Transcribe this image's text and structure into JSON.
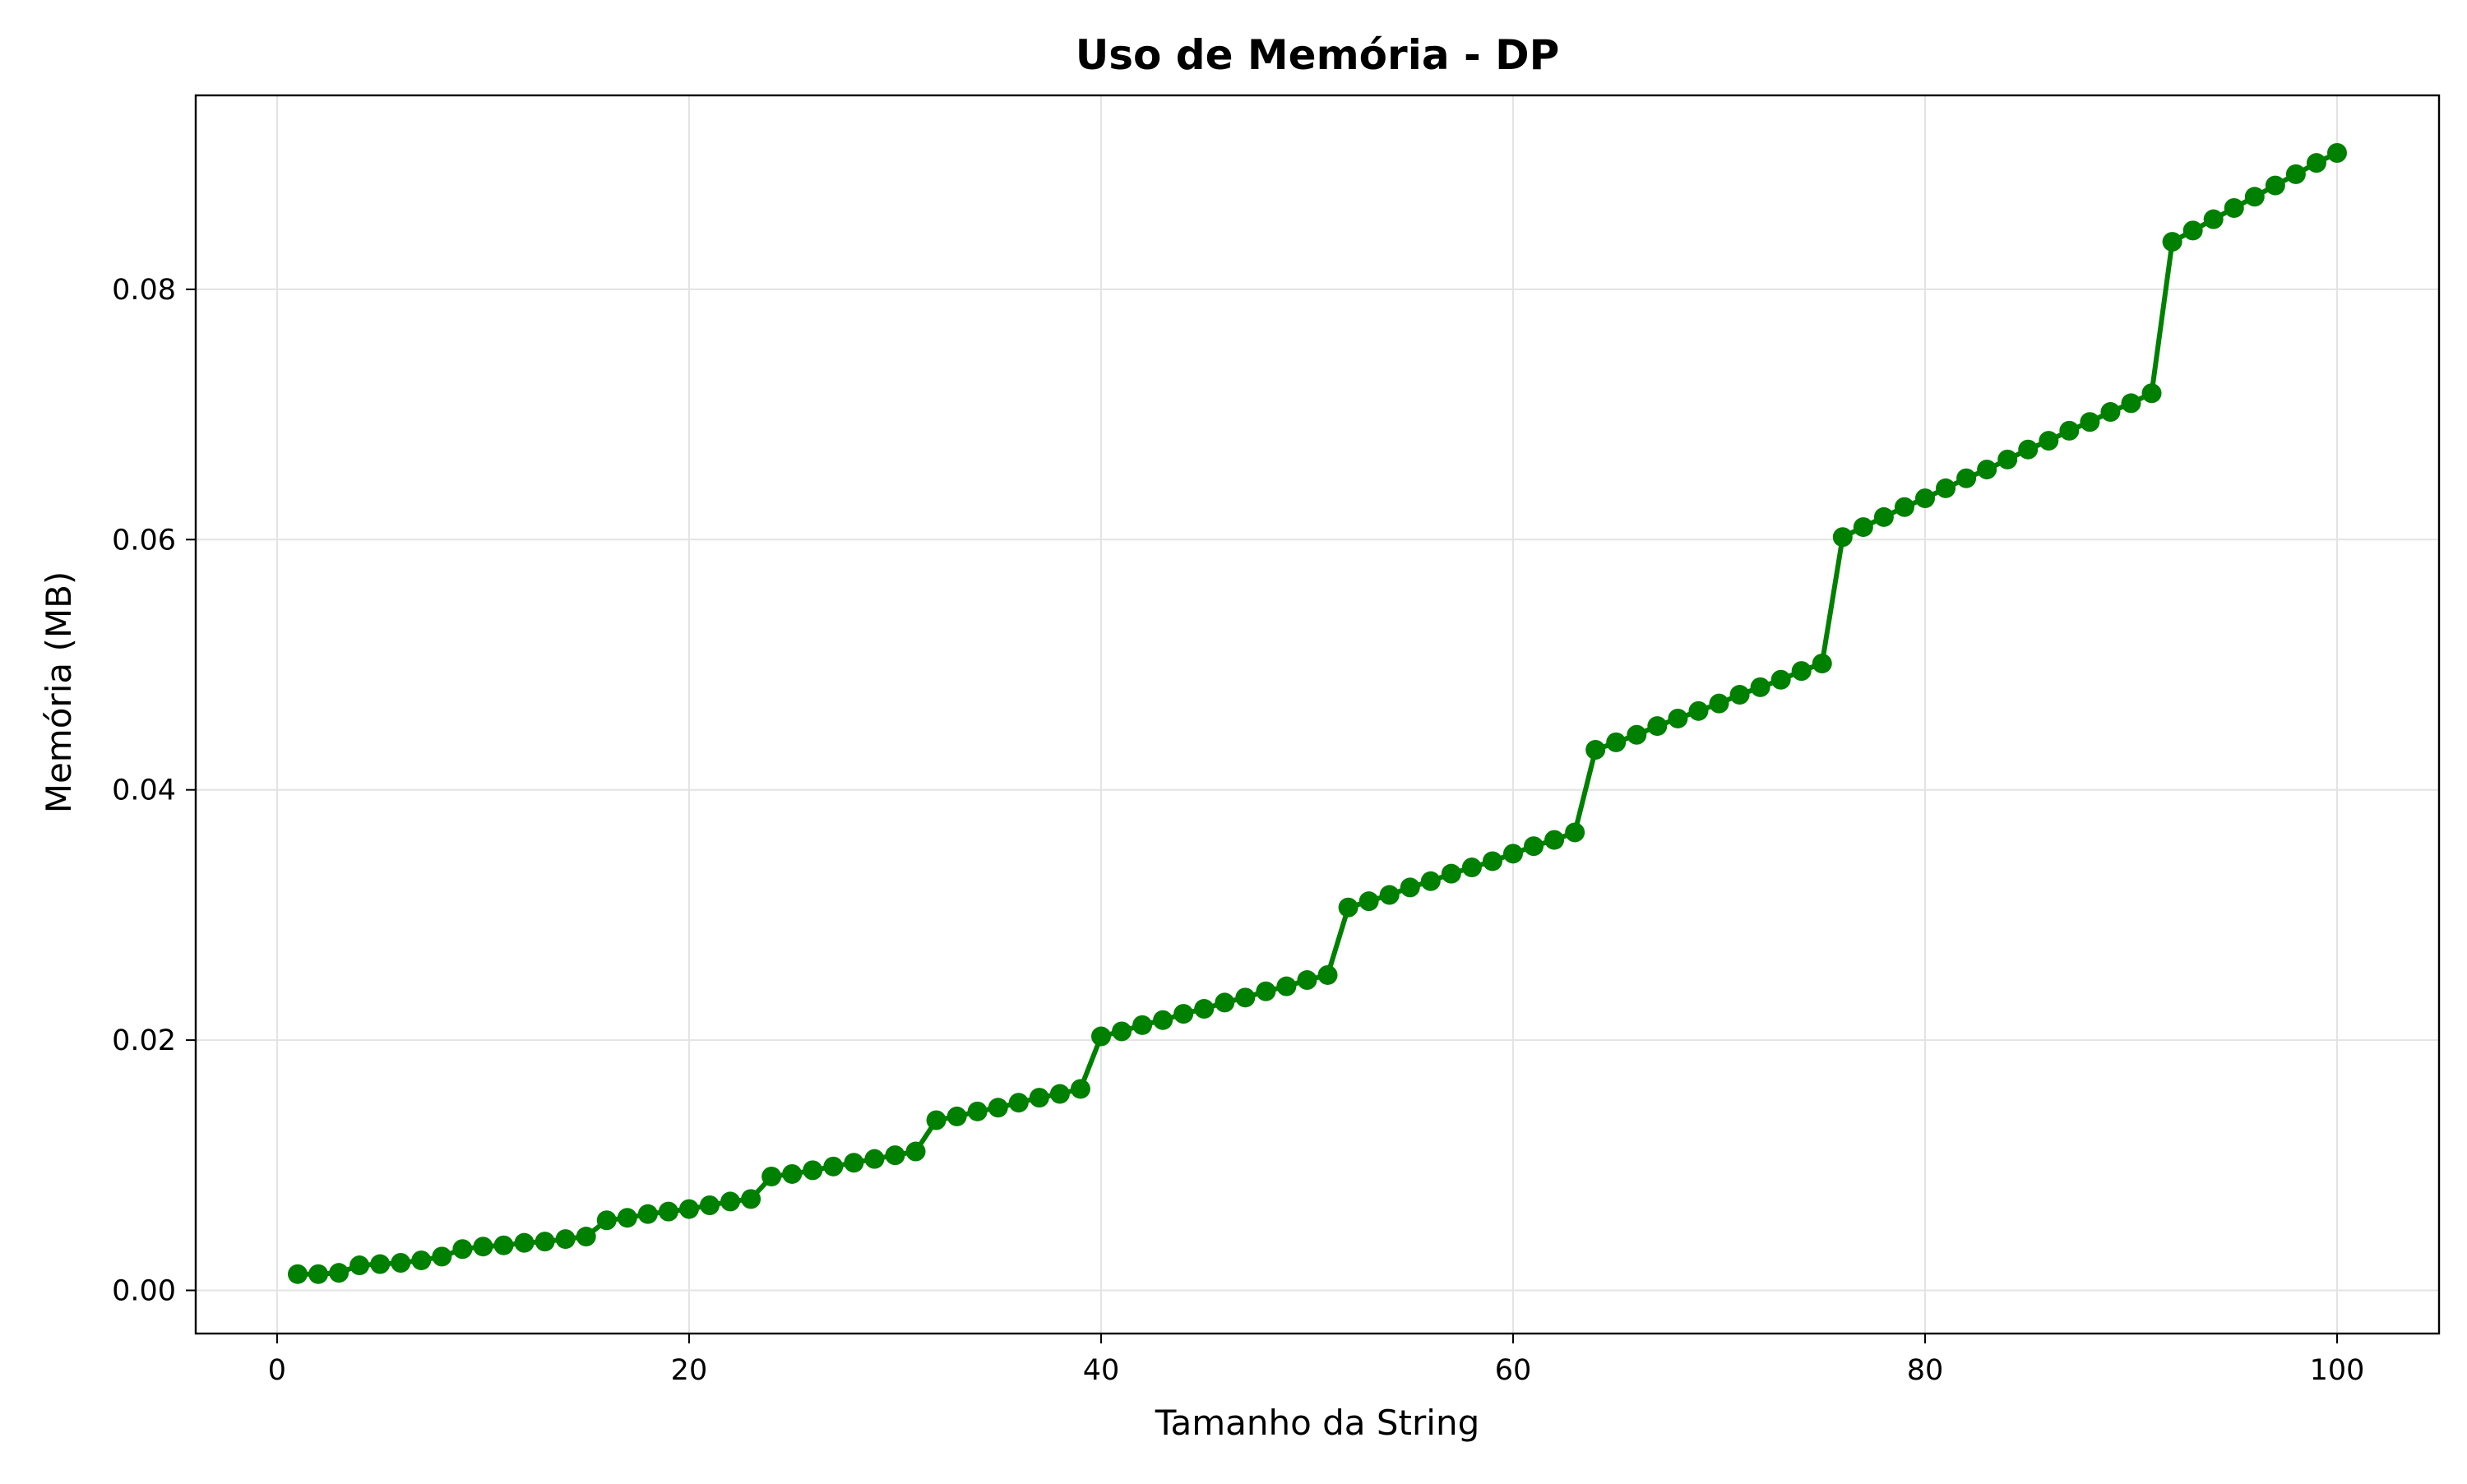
{
  "chart_data": {
    "type": "line",
    "title": "Uso de Memória - DP",
    "xlabel": "Tamanho da String",
    "ylabel": "Memória (MB)",
    "xlim": [
      -3.95,
      104.95
    ],
    "ylim": [
      -0.00345,
      0.0955
    ],
    "xticks": [
      0,
      20,
      40,
      60,
      80,
      100
    ],
    "xtick_labels": [
      "0",
      "20",
      "40",
      "60",
      "80",
      "100"
    ],
    "yticks": [
      0.0,
      0.02,
      0.04,
      0.06,
      0.08
    ],
    "ytick_labels": [
      "0.00",
      "0.02",
      "0.04",
      "0.06",
      "0.08"
    ],
    "grid": true,
    "legend": "none",
    "line_color": "#008000",
    "marker": "circle",
    "series": [
      {
        "x": [
          1,
          2,
          3,
          4,
          5,
          6,
          7,
          8,
          9,
          10,
          11,
          12,
          13,
          14,
          15,
          16,
          17,
          18,
          19,
          20,
          21,
          22,
          23,
          24,
          25,
          26,
          27,
          28,
          29,
          30,
          31,
          32,
          33,
          34,
          35,
          36,
          37,
          38,
          39,
          40,
          41,
          42,
          43,
          44,
          45,
          46,
          47,
          48,
          49,
          50,
          51,
          52,
          53,
          54,
          55,
          56,
          57,
          58,
          59,
          60,
          61,
          62,
          63,
          64,
          65,
          66,
          67,
          68,
          69,
          70,
          71,
          72,
          73,
          74,
          75,
          76,
          77,
          78,
          79,
          80,
          81,
          82,
          83,
          84,
          85,
          86,
          87,
          88,
          89,
          90,
          91,
          92,
          93,
          94,
          95,
          96,
          97,
          98,
          99,
          100
        ],
        "values": [
          0.0013,
          0.0013,
          0.0014,
          0.002,
          0.0021,
          0.0022,
          0.0024,
          0.0027,
          0.0033,
          0.0035,
          0.0036,
          0.0038,
          0.0039,
          0.0041,
          0.0043,
          0.0056,
          0.0058,
          0.0061,
          0.0063,
          0.0065,
          0.0068,
          0.0071,
          0.0073,
          0.0091,
          0.0093,
          0.0096,
          0.0099,
          0.0102,
          0.0105,
          0.0108,
          0.0111,
          0.0136,
          0.0139,
          0.0143,
          0.0146,
          0.015,
          0.0154,
          0.0157,
          0.0161,
          0.0203,
          0.0207,
          0.0212,
          0.0216,
          0.0221,
          0.0225,
          0.023,
          0.0234,
          0.0239,
          0.0243,
          0.0248,
          0.0252,
          0.0306,
          0.0311,
          0.0316,
          0.0322,
          0.0327,
          0.0333,
          0.0338,
          0.0343,
          0.0349,
          0.0355,
          0.036,
          0.0366,
          0.0432,
          0.0438,
          0.0444,
          0.0451,
          0.0457,
          0.0463,
          0.0469,
          0.0476,
          0.0482,
          0.0488,
          0.0495,
          0.0501,
          0.0602,
          0.061,
          0.0618,
          0.0626,
          0.0633,
          0.0641,
          0.0649,
          0.0656,
          0.0664,
          0.0672,
          0.0679,
          0.0687,
          0.0694,
          0.0702,
          0.0709,
          0.0717,
          0.0838,
          0.0847,
          0.0856,
          0.0865,
          0.0874,
          0.0883,
          0.0892,
          0.0901,
          0.0909
        ]
      }
    ]
  }
}
